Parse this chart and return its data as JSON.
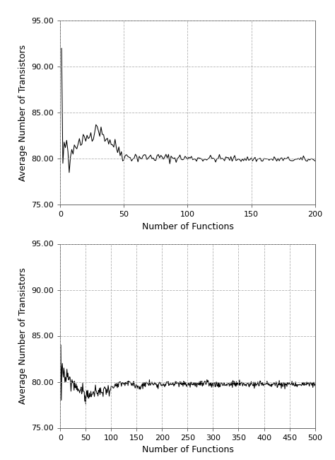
{
  "plot1": {
    "xlabel": "Number of Functions",
    "ylabel": "Average Number of Transistors",
    "xlim": [
      0,
      200
    ],
    "ylim": [
      75.0,
      95.0
    ],
    "xticks": [
      0,
      50,
      100,
      150,
      200
    ],
    "yticks": [
      75.0,
      80.0,
      85.0,
      90.0,
      95.0
    ],
    "n_points": 200,
    "seed": 42
  },
  "plot2": {
    "xlabel": "Number of Functions",
    "ylabel": "Average Number of Transistors",
    "xlim": [
      0,
      500
    ],
    "ylim": [
      75.0,
      95.0
    ],
    "xticks": [
      0,
      50,
      100,
      150,
      200,
      250,
      300,
      350,
      400,
      450,
      500
    ],
    "yticks": [
      75.0,
      80.0,
      85.0,
      90.0,
      95.0
    ],
    "n_points": 500,
    "seed": 99
  },
  "line_color": "#000000",
  "grid_color_h": "#aaaaaa",
  "grid_color_v": "#aaaaaa",
  "background_color": "#ffffff",
  "font_size_label": 9,
  "font_size_tick": 8,
  "line_width": 0.75
}
